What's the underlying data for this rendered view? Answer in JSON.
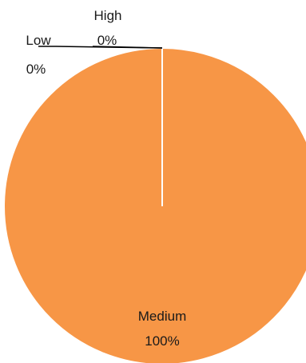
{
  "chart_data": {
    "type": "pie",
    "title": "",
    "slices": [
      {
        "label": "Low",
        "value": 0,
        "percent_label": "0%",
        "color": "#f79646"
      },
      {
        "label": "High",
        "value": 0,
        "percent_label": "0%",
        "color": "#f79646"
      },
      {
        "label": "Medium",
        "value": 100,
        "percent_label": "100%",
        "color": "#f79646"
      }
    ],
    "slice_border_color": "#ffffff",
    "leader_line_color": "#000000"
  }
}
